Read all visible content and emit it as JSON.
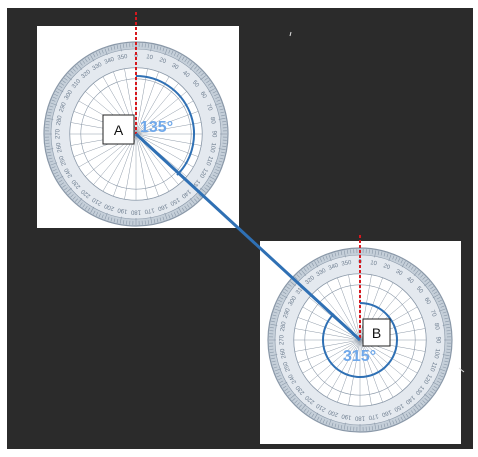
{
  "colors": {
    "background": "#2b2b2b",
    "panel": "#ffffff",
    "protractor_ring": "#c5cfd9",
    "protractor_stroke": "#8a98a8",
    "protractor_text": "#6c7c8e",
    "reference_line": "#d6181e",
    "bearing_line": "#2f70b4",
    "angle_arc": "#2f70b4",
    "angle_label": "#6fa8ea",
    "point_box_border": "#222222"
  },
  "points": [
    {
      "label": "A",
      "angle_label": "135°",
      "bearing_deg": 135
    },
    {
      "label": "B",
      "angle_label": "315°",
      "bearing_deg": 315
    }
  ],
  "protractor": {
    "degree_labels": [
      "0",
      "10",
      "20",
      "30",
      "40",
      "50",
      "60",
      "70",
      "80",
      "90",
      "100",
      "110",
      "120",
      "130",
      "140",
      "150",
      "160",
      "170",
      "180",
      "190",
      "200",
      "210",
      "220",
      "230",
      "240",
      "250",
      "260",
      "270",
      "280",
      "290",
      "300",
      "310",
      "320",
      "330",
      "340",
      "350"
    ]
  }
}
